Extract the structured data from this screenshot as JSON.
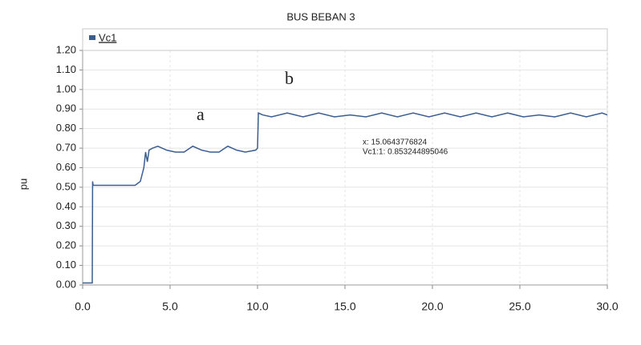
{
  "chart_data": {
    "type": "line",
    "title": "BUS BEBAN 3",
    "y_label": "pu",
    "annotations": [
      "a",
      "b",
      "x: 15.0643776824",
      "Vc1:1: 0.853244895046"
    ],
    "legend": "top-left",
    "grid": true,
    "xlim": [
      0,
      30
    ],
    "ylim": [
      0,
      1.2
    ],
    "xticks": [
      {
        "value": 0,
        "label": "0.0"
      },
      {
        "value": 5,
        "label": "5.0"
      },
      {
        "value": 10,
        "label": "10.0"
      },
      {
        "value": 15,
        "label": "15.0"
      },
      {
        "value": 20,
        "label": "20.0"
      },
      {
        "value": 25,
        "label": "25.0"
      },
      {
        "value": 30,
        "label": "30.0"
      }
    ],
    "yticks": [
      {
        "value": 0,
        "label": "0.00"
      },
      {
        "value": 0.1,
        "label": "0.10"
      },
      {
        "value": 0.2,
        "label": "0.20"
      },
      {
        "value": 0.3,
        "label": "0.30"
      },
      {
        "value": 0.4,
        "label": "0.40"
      },
      {
        "value": 0.5,
        "label": "0.50"
      },
      {
        "value": 0.6,
        "label": "0.60"
      },
      {
        "value": 0.7,
        "label": "0.70"
      },
      {
        "value": 0.8,
        "label": "0.80"
      },
      {
        "value": 0.9,
        "label": "0.90"
      },
      {
        "value": 1.0,
        "label": "1.00"
      },
      {
        "value": 1.1,
        "label": "1.10"
      },
      {
        "value": 1.2,
        "label": "1.20"
      }
    ],
    "x": [
      0,
      0.55,
      0.57,
      0.6,
      1,
      2,
      3,
      3.3,
      3.5,
      3.6,
      3.7,
      3.8,
      4.0,
      4.3,
      4.8,
      5.3,
      5.8,
      6.3,
      6.8,
      7.3,
      7.8,
      8.3,
      8.8,
      9.3,
      9.9,
      10.0,
      10.05,
      10.3,
      10.8,
      11.7,
      12.6,
      13.5,
      14.4,
      15.3,
      16.2,
      17.1,
      18,
      18.9,
      19.8,
      20.7,
      21.6,
      22.5,
      23.4,
      24.3,
      25.2,
      26.1,
      27,
      27.9,
      28.8,
      29.7,
      30
    ],
    "series": [
      {
        "name": "Vc1",
        "color": "#3b5d8f",
        "values": [
          0.01,
          0.01,
          0.53,
          0.51,
          0.51,
          0.51,
          0.51,
          0.53,
          0.6,
          0.68,
          0.63,
          0.69,
          0.7,
          0.71,
          0.69,
          0.68,
          0.68,
          0.71,
          0.69,
          0.68,
          0.68,
          0.71,
          0.69,
          0.68,
          0.69,
          0.7,
          0.88,
          0.87,
          0.86,
          0.88,
          0.86,
          0.88,
          0.86,
          0.87,
          0.86,
          0.88,
          0.86,
          0.88,
          0.86,
          0.88,
          0.86,
          0.88,
          0.86,
          0.88,
          0.86,
          0.87,
          0.86,
          0.88,
          0.86,
          0.88,
          0.87
        ]
      }
    ]
  }
}
